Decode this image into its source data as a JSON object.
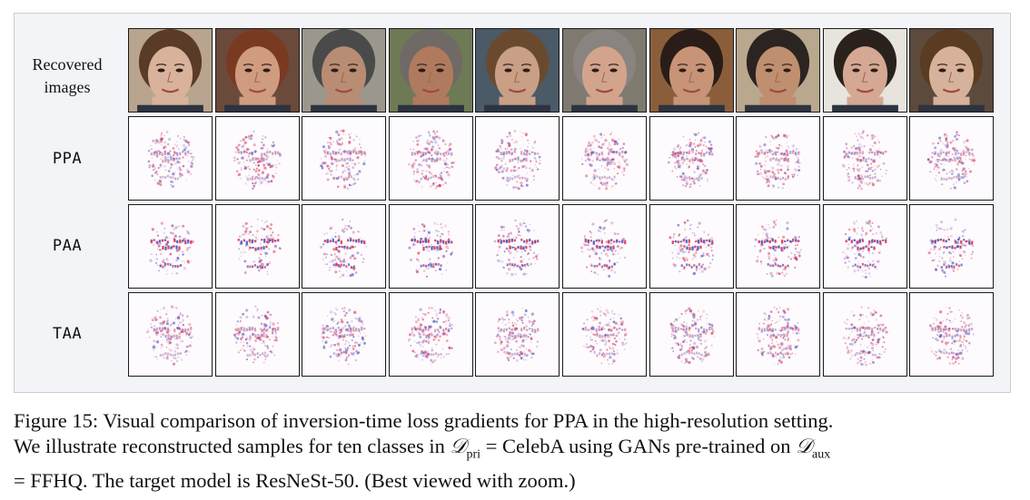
{
  "figure": {
    "row_labels": {
      "recovered": [
        "Recovered",
        "images"
      ],
      "ppa": "PPA",
      "paa": "PAA",
      "taa": "TAA"
    },
    "num_classes": 10,
    "colors": {
      "figure_background": "#f2f4f8",
      "gradient_positive": "#d2204a",
      "gradient_negative": "#3043b8",
      "gradient_mixed": "#8e2f96"
    }
  },
  "caption": {
    "line1": "Figure 15: Visual comparison of inversion-time loss gradients for PPA in the high-resolution setting.",
    "line2_pre": "We illustrate reconstructed samples for ten classes in ",
    "d_symbol": "𝒟",
    "pri_sub": "pri",
    "line2_mid": " = CelebA using GANs pre-trained on ",
    "aux_sub": "aux",
    "line3": "= FFHQ. The target model is ResNeSt-50. (Best viewed with zoom.)"
  }
}
